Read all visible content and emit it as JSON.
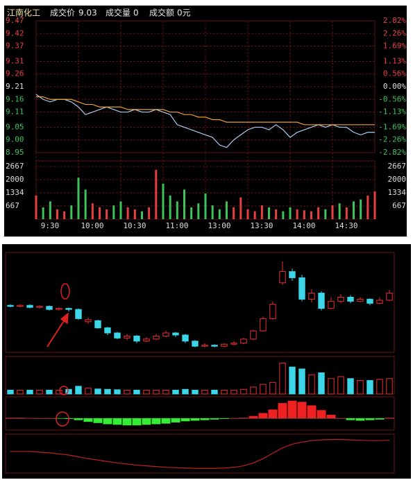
{
  "header": {
    "name": "江南化工",
    "fields": [
      {
        "label": "成交价",
        "value": 9.03
      },
      {
        "label": "成交量",
        "value": 0
      },
      {
        "label": "成交额",
        "value": "0元"
      }
    ]
  },
  "chart_data": [
    {
      "type": "line",
      "grid": true,
      "grid_color": "#5a1212",
      "x": [
        0,
        5,
        10,
        15,
        20,
        25,
        30,
        35,
        40,
        45,
        50,
        55,
        60,
        65,
        70,
        75,
        80,
        85,
        90,
        95,
        100,
        105,
        110,
        115,
        120,
        125,
        130,
        135,
        140,
        145,
        150,
        155,
        160,
        165,
        170,
        175,
        180,
        185,
        190,
        195,
        200,
        205,
        210,
        215,
        220,
        225,
        230,
        235,
        240
      ],
      "series": [
        {
          "color": "#a9cdf0",
          "values": [
            9.18,
            9.16,
            9.15,
            9.16,
            9.16,
            9.15,
            9.13,
            9.1,
            9.11,
            9.12,
            9.13,
            9.12,
            9.11,
            9.11,
            9.12,
            9.11,
            9.11,
            9.12,
            9.11,
            9.1,
            9.06,
            9.05,
            9.04,
            9.03,
            9.02,
            9.01,
            8.98,
            8.97,
            9.0,
            9.02,
            9.04,
            9.05,
            9.05,
            9.04,
            9.06,
            9.04,
            9.01,
            9.03,
            9.04,
            9.05,
            9.06,
            9.05,
            9.06,
            9.05,
            9.05,
            9.03,
            9.02,
            9.03,
            9.03
          ]
        },
        {
          "color": "#e8a030",
          "values": [
            9.17,
            9.17,
            9.16,
            9.16,
            9.16,
            9.16,
            9.15,
            9.14,
            9.14,
            9.13,
            9.13,
            9.13,
            9.13,
            9.12,
            9.12,
            9.12,
            9.12,
            9.12,
            9.12,
            9.11,
            9.11,
            9.1,
            9.1,
            9.09,
            9.09,
            9.08,
            9.08,
            9.07,
            9.07,
            9.07,
            9.07,
            9.07,
            9.07,
            9.07,
            9.07,
            9.07,
            9.07,
            9.07,
            9.06,
            9.06,
            9.06,
            9.06,
            9.06,
            9.06,
            9.06,
            9.06,
            9.06,
            9.06,
            9.06
          ]
        }
      ],
      "xlim": [
        0,
        240
      ],
      "xticks": [
        {
          "value": 0,
          "label": "9:30"
        },
        {
          "value": 30,
          "label": "10:00"
        },
        {
          "value": 60,
          "label": "10:30"
        },
        {
          "value": 90,
          "label": "11:00"
        },
        {
          "value": 120,
          "label": "13:00"
        },
        {
          "value": 150,
          "label": "13:30"
        },
        {
          "value": 180,
          "label": "14:00"
        },
        {
          "value": 210,
          "label": "14:30"
        }
      ],
      "ylim": [
        8.95,
        9.47
      ],
      "yticks": [
        9.47,
        9.42,
        9.37,
        9.31,
        9.26,
        9.21,
        9.16,
        9.11,
        9.05,
        {
          "value": 9.0,
          "label": "9.00"
        },
        8.95
      ],
      "y2lim": [
        -2.82,
        2.82
      ],
      "y2ticks": [
        {
          "value": 2.82,
          "label": "2.82%"
        },
        {
          "value": 2.26,
          "label": "2.26%"
        },
        {
          "value": 1.69,
          "label": "1.69%"
        },
        {
          "value": 1.13,
          "label": "1.13%"
        },
        {
          "value": 0.56,
          "label": "0.56%"
        },
        {
          "value": 0,
          "label": "0.00%"
        },
        {
          "value": -0.56,
          "label": "-0.56%"
        },
        {
          "value": -1.13,
          "label": "-1.13%"
        },
        {
          "value": -1.69,
          "label": "-1.69%"
        },
        {
          "value": -2.26,
          "label": "-2.26%"
        },
        {
          "value": -2.82,
          "label": "-2.82%"
        }
      ],
      "up_color": "#e84040",
      "flat_color": "#dddddd",
      "down_color": "#3cc45a"
    },
    {
      "type": "volume",
      "grid": true,
      "grid_color": "#5a1212",
      "x": [
        0,
        5,
        10,
        15,
        20,
        25,
        30,
        35,
        40,
        45,
        50,
        55,
        60,
        65,
        70,
        75,
        80,
        85,
        90,
        95,
        100,
        105,
        110,
        115,
        120,
        125,
        130,
        135,
        140,
        145,
        150,
        155,
        160,
        165,
        170,
        175,
        180,
        185,
        190,
        195,
        200,
        205,
        210,
        215,
        220,
        225,
        230,
        235,
        240
      ],
      "values": [
        1200,
        600,
        900,
        500,
        400,
        700,
        2100,
        1500,
        800,
        600,
        500,
        700,
        900,
        600,
        500,
        400,
        600,
        2500,
        1800,
        1200,
        900,
        1500,
        600,
        800,
        1300,
        700,
        500,
        900,
        600,
        1100,
        500,
        400,
        700,
        600,
        500,
        400,
        600,
        500,
        450,
        400,
        600,
        500,
        700,
        800,
        600,
        900,
        1000,
        1200,
        1400
      ],
      "xlim": [
        0,
        240
      ],
      "ylim": [
        0,
        2950
      ],
      "yticks": [
        2667,
        2000,
        1334,
        667
      ],
      "up_color": "#e84040",
      "down_color": "#3cc45a"
    },
    {
      "type": "candlestick",
      "open": [
        11.6,
        11.5,
        11.6,
        11.4,
        11.5,
        11.2,
        11.3,
        11.2,
        10.0,
        10.1,
        9.4,
        8.9,
        8.4,
        8.6,
        8.1,
        8.3,
        8.6,
        8.9,
        8.7,
        8.1,
        7.6,
        7.7,
        7.6,
        7.8,
        7.9,
        8.3,
        9.1,
        10.3,
        13.8,
        14.9,
        14.3,
        12.2,
        12.8,
        11.3,
        12.0,
        12.4,
        12.0,
        12.2,
        11.8,
        12.1
      ],
      "high": [
        11.7,
        11.7,
        11.7,
        11.6,
        11.6,
        11.4,
        11.4,
        11.3,
        10.4,
        10.2,
        9.5,
        9.0,
        8.8,
        8.7,
        8.5,
        8.8,
        9.1,
        9.0,
        8.8,
        8.2,
        7.9,
        7.8,
        7.9,
        8.1,
        8.4,
        9.2,
        10.5,
        12.0,
        15.9,
        15.2,
        14.6,
        13.2,
        13.0,
        12.4,
        12.7,
        12.6,
        12.4,
        12.3,
        12.4,
        13.1
      ],
      "low": [
        11.4,
        11.4,
        11.3,
        11.3,
        11.1,
        11.1,
        11.0,
        10.2,
        9.8,
        9.3,
        8.7,
        8.3,
        8.2,
        7.9,
        8.0,
        8.2,
        8.5,
        8.5,
        7.9,
        7.5,
        7.5,
        7.5,
        7.5,
        7.7,
        7.8,
        8.2,
        9.0,
        10.2,
        13.6,
        14.0,
        12.0,
        11.9,
        11.1,
        11.2,
        11.8,
        11.8,
        11.9,
        11.6,
        11.7,
        12.0
      ],
      "close": [
        11.5,
        11.6,
        11.4,
        11.5,
        11.2,
        11.3,
        11.2,
        10.3,
        10.2,
        9.4,
        8.9,
        8.4,
        8.6,
        8.1,
        8.3,
        8.6,
        8.9,
        8.7,
        8.1,
        7.6,
        7.7,
        7.6,
        7.8,
        7.9,
        8.3,
        9.1,
        10.3,
        11.7,
        14.9,
        14.3,
        12.2,
        12.8,
        11.3,
        12.0,
        12.4,
        12.0,
        12.2,
        11.8,
        12.1,
        12.8
      ],
      "ylim": [
        7,
        16.5
      ],
      "up_color": "#e83030",
      "down_color": "#3dd6e8"
    },
    {
      "type": "volume2",
      "values": [
        1,
        1,
        1,
        1,
        1,
        1,
        1.2,
        2,
        1.5,
        1.3,
        1.2,
        1.1,
        1,
        1,
        1,
        1,
        1,
        1,
        1.2,
        1,
        1,
        1,
        1,
        1,
        1.2,
        1.8,
        2.5,
        3,
        8,
        7,
        6.5,
        5,
        5.5,
        4,
        4.5,
        4,
        3.5,
        3.5,
        3.8,
        4
      ],
      "ylim": [
        0,
        9
      ],
      "up_color": "#e83030",
      "down_color": "#3dd6e8"
    },
    {
      "type": "macd",
      "values": [
        0.1,
        0.1,
        0.05,
        0,
        0,
        -0.05,
        -0.1,
        -0.3,
        -0.6,
        -0.8,
        -1,
        -1.1,
        -1.2,
        -1.2,
        -1.1,
        -1,
        -0.9,
        -0.7,
        -0.5,
        -0.4,
        -0.3,
        -0.2,
        -0.1,
        0,
        0.1,
        0.4,
        0.9,
        1.5,
        2.6,
        3,
        2.8,
        2.2,
        1.4,
        0.6,
        0,
        -0.3,
        -0.4,
        -0.3,
        -0.2,
        0.1
      ],
      "ylim": [
        -2,
        3.2
      ],
      "up_color": "#ee2020",
      "down_color": "#33ee33"
    },
    {
      "type": "indicator",
      "color": "#c02020",
      "values": [
        6,
        6,
        6,
        5.8,
        5.6,
        5.3,
        5,
        4.5,
        4,
        3.6,
        3.2,
        2.8,
        2.5,
        2.2,
        2,
        1.8,
        1.6,
        1.5,
        1.4,
        1.3,
        1.3,
        1.3,
        1.4,
        1.6,
        2,
        2.8,
        4,
        5.5,
        7,
        8,
        8.6,
        9,
        9.2,
        9.3,
        9.3,
        9.2,
        9.1,
        9,
        9,
        9.1
      ],
      "ylim": [
        0,
        10
      ]
    }
  ]
}
